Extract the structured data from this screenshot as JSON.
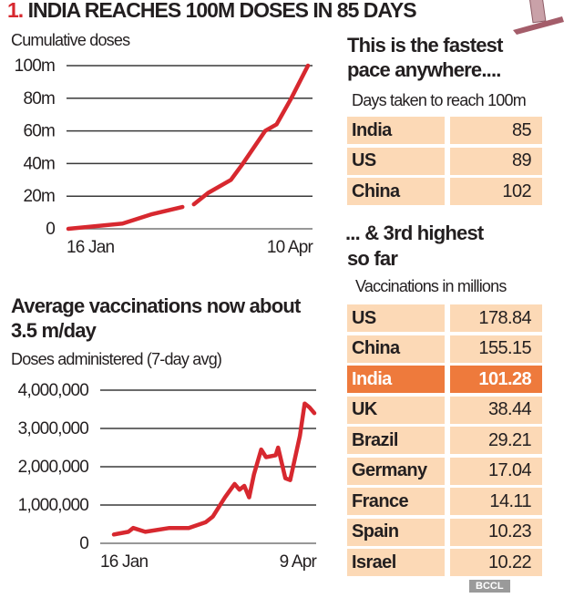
{
  "title": {
    "number": "1.",
    "text": "INDIA REACHES 100M DOSES IN 85 DAYS"
  },
  "colors": {
    "line": "#d7282f",
    "cell": "#fcd9b6",
    "highlight": "#ee7a3c",
    "grid": "#3a3a3a"
  },
  "chart_data": [
    {
      "type": "line",
      "title": "Cumulative doses",
      "yticks": [
        "0",
        "20m",
        "40m",
        "60m",
        "80m",
        "100m"
      ],
      "ylim": [
        0,
        100
      ],
      "xticks": [
        "16 Jan",
        "10 Apr"
      ],
      "xlim": [
        "2021-01-16",
        "2021-04-10"
      ],
      "grid": true,
      "unit": "million doses",
      "points": [
        [
          "2021-01-16",
          0
        ],
        [
          "2021-02-04",
          3.2
        ],
        [
          "2021-02-14",
          8.8
        ],
        [
          "2021-02-25",
          13.4
        ],
        [
          "2021-02-27",
          null
        ],
        [
          "2021-03-01",
          15
        ],
        [
          "2021-03-06",
          22
        ],
        [
          "2021-03-14",
          30
        ],
        [
          "2021-03-18",
          39.5
        ],
        [
          "2021-03-26",
          60
        ],
        [
          "2021-03-30",
          64
        ],
        [
          "2021-04-04",
          79.5
        ],
        [
          "2021-04-10",
          100
        ]
      ]
    },
    {
      "type": "line",
      "title": "Average vaccinations now about 3.5 m/day",
      "subtitle": "Doses administered (7-day avg)",
      "yticks": [
        "0",
        "1,000,000",
        "2,000,000",
        "3,000,000",
        "4,000,000"
      ],
      "ylim": [
        0,
        4000000
      ],
      "xticks": [
        "16 Jan",
        "9 Apr"
      ],
      "xlim": [
        "2021-01-16",
        "2021-04-09"
      ],
      "grid": true,
      "points": [
        [
          "2021-01-16",
          230000
        ],
        [
          "2021-01-22",
          300000
        ],
        [
          "2021-01-24",
          400000
        ],
        [
          "2021-01-29",
          300000
        ],
        [
          "2021-02-08",
          400000
        ],
        [
          "2021-02-16",
          400000
        ],
        [
          "2021-02-23",
          550000
        ],
        [
          "2021-02-26",
          700000
        ],
        [
          "2021-03-03",
          1200000
        ],
        [
          "2021-03-07",
          1550000
        ],
        [
          "2021-03-09",
          1400000
        ],
        [
          "2021-03-11",
          1500000
        ],
        [
          "2021-03-13",
          1200000
        ],
        [
          "2021-03-15",
          1800000
        ],
        [
          "2021-03-18",
          2450000
        ],
        [
          "2021-03-20",
          2250000
        ],
        [
          "2021-03-24",
          2300000
        ],
        [
          "2021-03-25",
          2500000
        ],
        [
          "2021-03-28",
          1700000
        ],
        [
          "2021-03-30",
          1650000
        ],
        [
          "2021-04-03",
          2800000
        ],
        [
          "2021-04-05",
          3650000
        ],
        [
          "2021-04-07",
          3550000
        ],
        [
          "2021-04-09",
          3400000
        ]
      ]
    }
  ],
  "fastest": {
    "heading_line1": "This is the fastest",
    "heading_line2": "pace anywhere....",
    "subheading": "Days taken to reach 100m",
    "rows": [
      {
        "country": "India",
        "value": "85"
      },
      {
        "country": "US",
        "value": "89"
      },
      {
        "country": "China",
        "value": "102"
      }
    ]
  },
  "highest": {
    "heading_line1": "... & 3rd highest",
    "heading_line2": "so far",
    "subheading": "Vaccinations in millions",
    "rows": [
      {
        "country": "US",
        "value": "178.84"
      },
      {
        "country": "China",
        "value": "155.15"
      },
      {
        "country": "India",
        "value": "101.28",
        "highlight": true
      },
      {
        "country": "UK",
        "value": "38.44"
      },
      {
        "country": "Brazil",
        "value": "29.21"
      },
      {
        "country": "Germany",
        "value": "17.04"
      },
      {
        "country": "France",
        "value": "14.11"
      },
      {
        "country": "Spain",
        "value": "10.23"
      },
      {
        "country": "Israel",
        "value": "10.22"
      }
    ]
  },
  "watermark": "BCCL",
  "decoration": "syringe-icon"
}
